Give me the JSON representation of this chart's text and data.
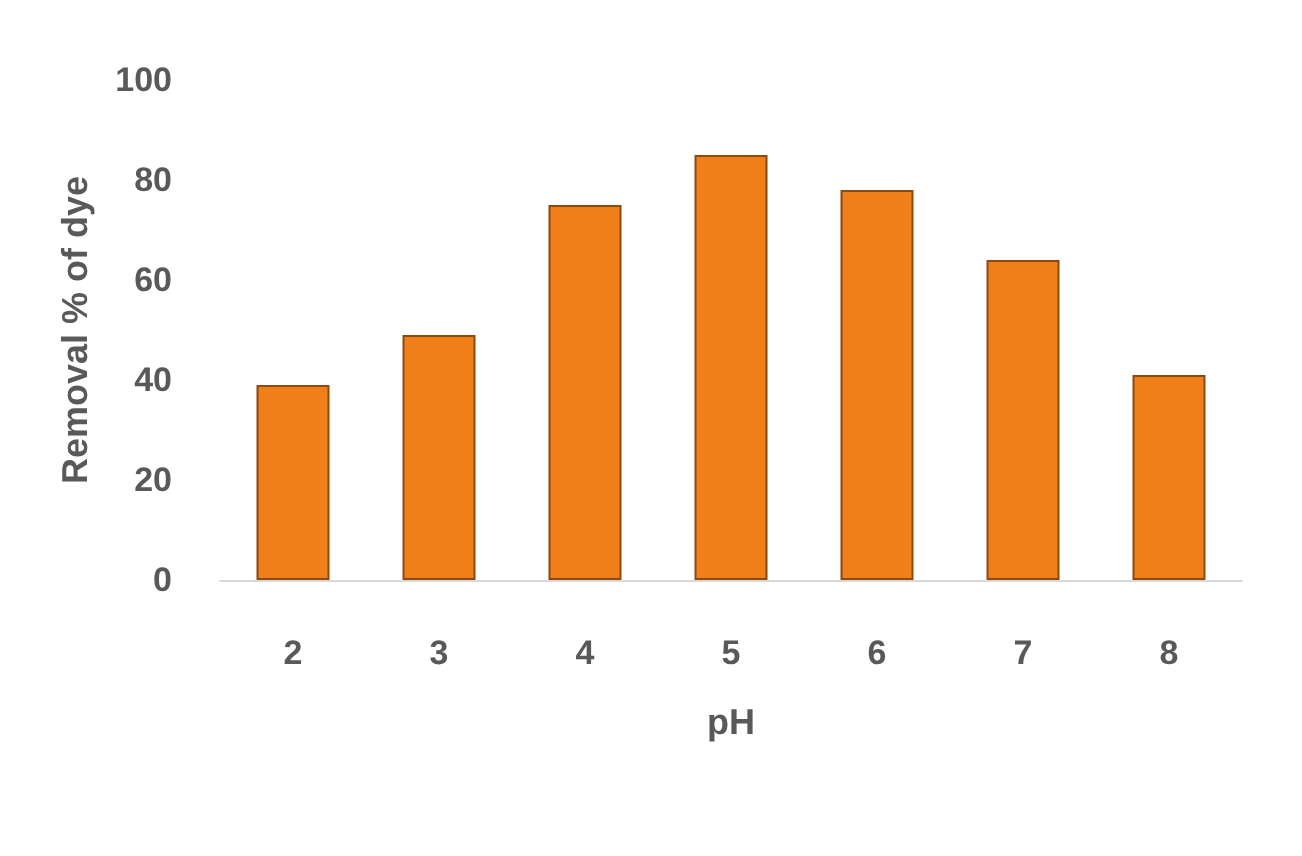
{
  "chart_data": {
    "type": "bar",
    "xlabel": "pH",
    "ylabel": "Removal % of dye",
    "categories": [
      "2",
      "3",
      "4",
      "5",
      "6",
      "7",
      "8"
    ],
    "values": [
      39,
      49,
      75,
      85,
      78,
      64,
      41
    ],
    "color": "#f07f1a",
    "ylim": [
      0,
      100
    ],
    "yticks": [
      0,
      20,
      40,
      60,
      80,
      100
    ],
    "grid": false
  }
}
